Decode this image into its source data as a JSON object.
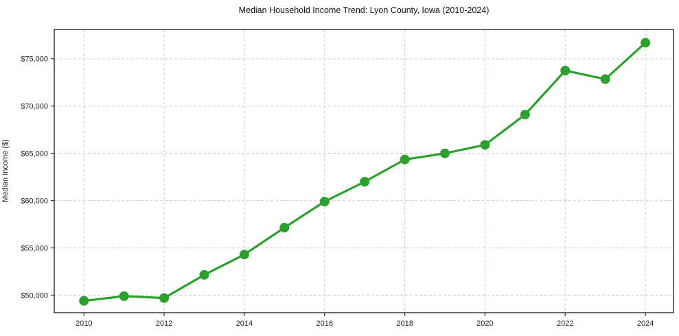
{
  "chart_data": {
    "type": "line",
    "title": "Median Household Income Trend: Lyon County, Iowa (2010-2024)",
    "xlabel": "",
    "ylabel": "Median Income ($)",
    "x": [
      2010,
      2011,
      2012,
      2013,
      2014,
      2015,
      2016,
      2017,
      2018,
      2019,
      2020,
      2021,
      2022,
      2023,
      2024
    ],
    "series": [
      {
        "name": "Median Household Income",
        "values": [
          49400,
          49900,
          49700,
          52150,
          54300,
          57150,
          59900,
          62000,
          64350,
          65000,
          65900,
          69100,
          73750,
          72850,
          76700
        ]
      }
    ],
    "xticks": [
      2010,
      2012,
      2014,
      2016,
      2018,
      2020,
      2022,
      2024
    ],
    "yticks": [
      50000,
      55000,
      60000,
      65000,
      70000,
      75000
    ],
    "ytick_label_format": "$#,###",
    "xlim": [
      2009.26,
      2024.7
    ],
    "ylim": [
      48150,
      78100
    ],
    "grid": true,
    "grid_style": "dashed",
    "legend": "none",
    "line_color": "#2ca02c",
    "marker_color": "#2ca02c",
    "marker_shape": "circle",
    "grid_color": "#cccccc",
    "spine_color": "#1a1a1a",
    "tick_color": "#333333",
    "background_color": "#ffffff"
  }
}
